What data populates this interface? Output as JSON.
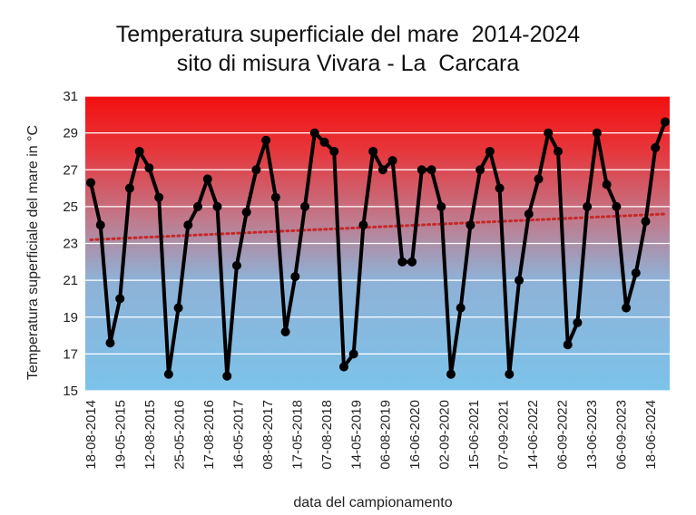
{
  "chart_data": {
    "type": "line",
    "title": "Temperatura superficiale del mare  2014-2024",
    "subtitle": "sito di misura Vivara - La  Carcara",
    "xlabel": "data del campionamento",
    "ylabel": "Temperatura  superficiale del mare in °C",
    "ylim": [
      15,
      31
    ],
    "yticks": [
      "15",
      "17",
      "19",
      "21",
      "23",
      "25",
      "27",
      "29",
      "31"
    ],
    "xtick_labels": [
      "18-08-2014",
      "19-05-2015",
      "12-08-2015",
      "25-05-2016",
      "17-08-2016",
      "16-05-2017",
      "08-08-2017",
      "17-05-2018",
      "07-08-2018",
      "14-05-2019",
      "06-08-2019",
      "16-06-2020",
      "02-09-2020",
      "15-06-2021",
      "07-09-2021",
      "14-06-2022",
      "06-09-2022",
      "13-06-2023",
      "06-09-2023",
      "18-06-2024"
    ],
    "grid": true,
    "background": "gradient red (top) to light blue (bottom)",
    "series": [
      {
        "values": [
          26.3,
          24.0,
          17.6,
          20.0,
          26.0,
          28.0,
          27.1,
          25.5,
          15.9,
          19.5,
          24.0,
          25.0,
          26.5,
          25.0,
          15.8,
          21.8,
          24.7,
          27.0,
          28.6,
          25.5,
          18.2,
          21.2,
          25.0,
          29.0,
          28.5,
          28.0,
          16.3,
          17.0,
          24.0,
          28.0,
          27.0,
          27.5,
          22.0,
          22.0,
          27.0,
          27.0,
          25.0,
          15.9,
          19.5,
          24.0,
          27.0,
          28.0,
          26.0,
          15.9,
          21.0,
          24.6,
          26.5,
          29.0,
          28.0,
          17.5,
          18.7,
          25.0,
          29.0,
          26.2,
          25.0,
          19.5,
          21.4,
          24.2,
          28.2,
          29.6
        ],
        "color": "#000000"
      }
    ],
    "trendline": {
      "style": "dotted",
      "color": "#c62828",
      "start": 23.2,
      "end": 24.6
    }
  }
}
